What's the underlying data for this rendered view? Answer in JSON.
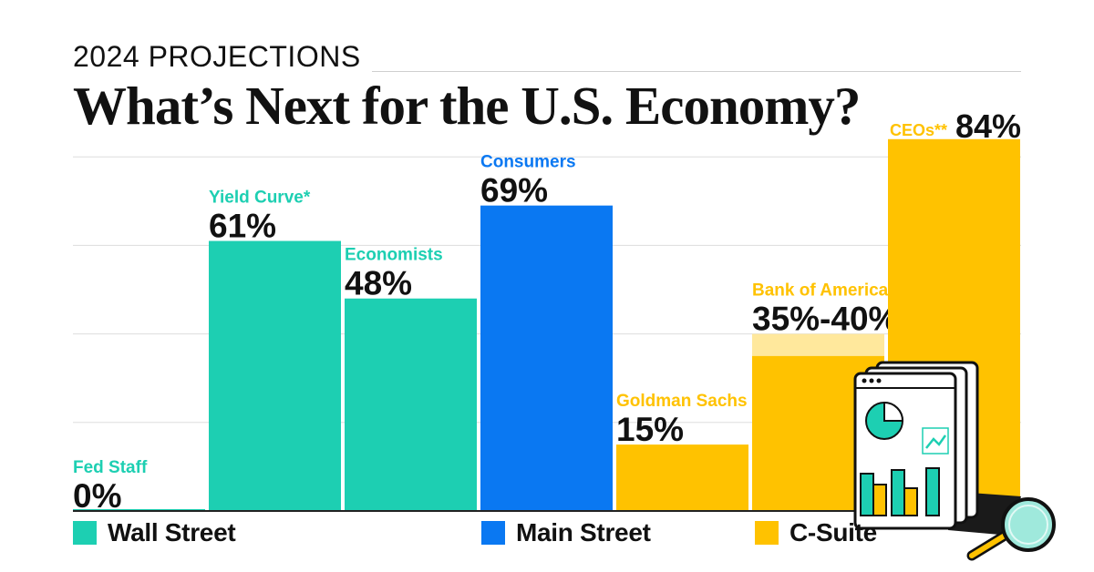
{
  "header": {
    "kicker": "2024 PROJECTIONS",
    "title": "What’s Next for the U.S. Economy?"
  },
  "colors": {
    "wall_street": "#1dcfb2",
    "main_street": "#0a78f2",
    "c_suite": "#ffc200",
    "c_suite_light": "#ffe89c",
    "grid": "#dddddd",
    "baseline": "#222222"
  },
  "legend": [
    {
      "label": "Wall Street",
      "color": "#1dcfb2"
    },
    {
      "label": "Main Street",
      "color": "#0a78f2"
    },
    {
      "label": "C-Suite",
      "color": "#ffc200"
    }
  ],
  "chart_data": {
    "type": "bar",
    "title": "What’s Next for the U.S. Economy?",
    "subtitle": "2024 PROJECTIONS",
    "ylim": [
      0,
      100
    ],
    "grid": true,
    "legend_position": "bottom",
    "categories": [
      "Fed Staff",
      "Yield Curve*",
      "Economists",
      "Consumers",
      "Goldman Sachs",
      "Bank of America",
      "CEOs**"
    ],
    "values": [
      0,
      61,
      48,
      69,
      15,
      40,
      84
    ],
    "range_low": [
      null,
      null,
      null,
      null,
      null,
      35,
      null
    ],
    "group": [
      "Wall Street",
      "Wall Street",
      "Wall Street",
      "Main Street",
      "C-Suite",
      "C-Suite",
      "C-Suite"
    ],
    "value_labels": [
      "0%",
      "61%",
      "48%",
      "69%",
      "15%",
      "35%-40%",
      "84%"
    ]
  }
}
